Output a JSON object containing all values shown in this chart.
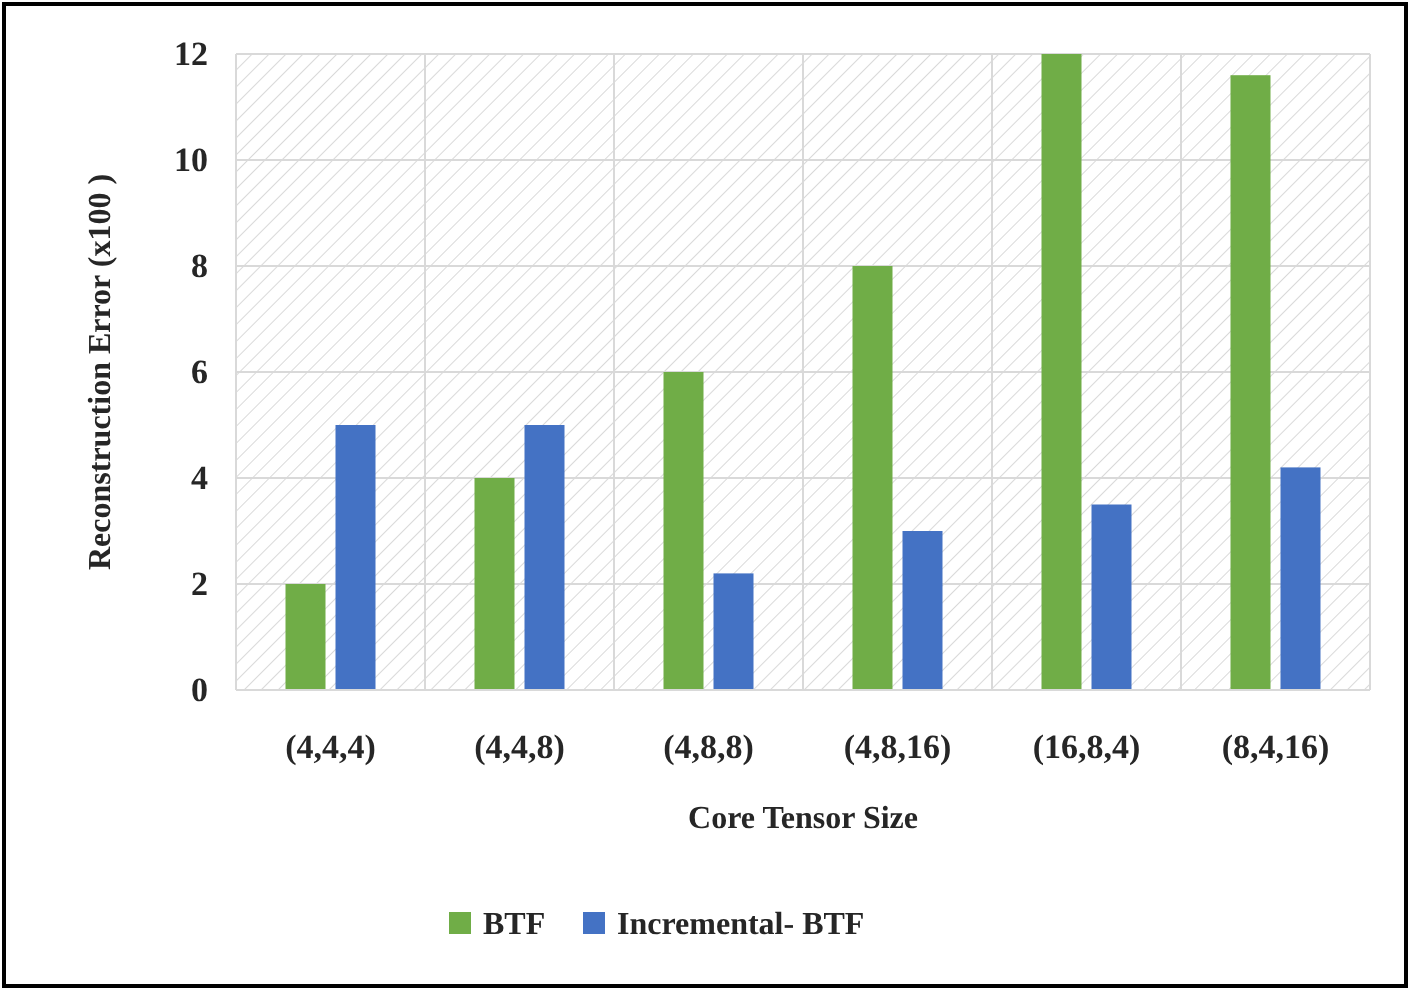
{
  "chart_data": {
    "type": "bar",
    "xlabel": "Core Tensor Size",
    "ylabel": "Reconstruction Error (x100 )",
    "categories": [
      "(4,4,4)",
      "(4,4,8)",
      "(4,8,8)",
      "(4,8,16)",
      "(16,8,4)",
      "(8,4,16)"
    ],
    "series": [
      {
        "name": "BTF",
        "color": "#70ad47",
        "values": [
          2,
          4,
          6,
          8,
          12,
          11.6
        ]
      },
      {
        "name": "Incremental- BTF",
        "color": "#4472c4",
        "values": [
          5,
          5,
          2.2,
          3,
          3.5,
          4.2
        ]
      }
    ],
    "ylim": [
      0,
      12
    ],
    "yticks": [
      0,
      2,
      4,
      6,
      8,
      10,
      12
    ],
    "grid": true,
    "legend": "bottom"
  }
}
